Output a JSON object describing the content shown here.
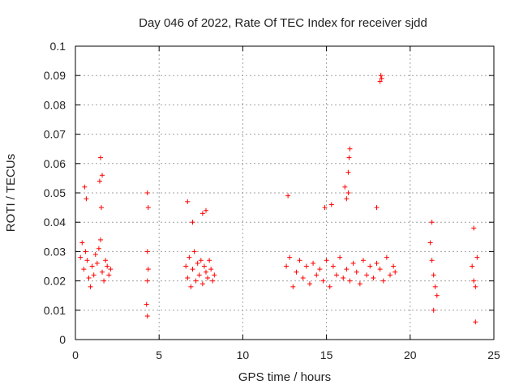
{
  "chart_data": {
    "type": "scatter",
    "title": "Day 046 of 2022, Rate Of TEC Index for receiver sjdd",
    "xlabel": "GPS time / hours",
    "ylabel": "ROTI / TECUs",
    "xlim": [
      0,
      25
    ],
    "ylim": [
      0,
      0.1
    ],
    "x_ticks": [
      "0",
      "5",
      "10",
      "15",
      "20",
      "25"
    ],
    "y_ticks": [
      "0",
      "0.01",
      "0.02",
      "0.03",
      "0.04",
      "0.05",
      "0.06",
      "0.07",
      "0.08",
      "0.09",
      "0.1"
    ],
    "grid": true,
    "marker": "+",
    "color": "#ff0000",
    "series": [
      {
        "name": "ROTI",
        "x": [
          0.3,
          0.4,
          0.5,
          0.6,
          0.7,
          0.8,
          0.9,
          1.0,
          1.1,
          1.2,
          1.3,
          1.4,
          1.5,
          1.6,
          1.7,
          1.8,
          1.9,
          2.0,
          2.1,
          0.55,
          0.65,
          1.5,
          1.45,
          1.55,
          1.6,
          4.3,
          4.35,
          4.3,
          4.25,
          4.3,
          4.35,
          4.3,
          6.6,
          6.7,
          6.8,
          6.9,
          7.0,
          7.1,
          7.2,
          7.3,
          7.4,
          7.5,
          7.6,
          7.7,
          7.8,
          7.9,
          8.0,
          8.1,
          8.2,
          8.3,
          6.7,
          7.0,
          7.6,
          7.8,
          12.6,
          12.8,
          13.0,
          13.2,
          13.4,
          13.6,
          13.8,
          14.0,
          14.2,
          14.4,
          14.6,
          14.8,
          15.0,
          15.2,
          15.4,
          15.6,
          15.8,
          16.0,
          16.2,
          16.4,
          16.6,
          16.8,
          17.0,
          17.2,
          17.4,
          17.6,
          17.8,
          18.0,
          18.2,
          18.4,
          18.6,
          18.8,
          19.0,
          19.1,
          12.7,
          14.9,
          15.3,
          16.1,
          16.3,
          16.35,
          16.4,
          16.2,
          16.3,
          18.2,
          18.25,
          18.3,
          18.0,
          21.2,
          21.3,
          21.4,
          21.5,
          21.6,
          21.3,
          21.4,
          23.7,
          23.8,
          23.9,
          24.0,
          23.8,
          23.9
        ],
        "y": [
          0.028,
          0.033,
          0.024,
          0.03,
          0.027,
          0.021,
          0.018,
          0.025,
          0.022,
          0.029,
          0.026,
          0.031,
          0.034,
          0.023,
          0.02,
          0.027,
          0.025,
          0.022,
          0.024,
          0.052,
          0.048,
          0.062,
          0.054,
          0.045,
          0.056,
          0.03,
          0.024,
          0.02,
          0.012,
          0.008,
          0.045,
          0.05,
          0.025,
          0.021,
          0.028,
          0.018,
          0.024,
          0.03,
          0.02,
          0.026,
          0.022,
          0.027,
          0.019,
          0.025,
          0.023,
          0.021,
          0.027,
          0.024,
          0.02,
          0.022,
          0.047,
          0.04,
          0.043,
          0.044,
          0.025,
          0.028,
          0.018,
          0.023,
          0.027,
          0.021,
          0.025,
          0.019,
          0.026,
          0.022,
          0.024,
          0.02,
          0.027,
          0.018,
          0.025,
          0.022,
          0.028,
          0.021,
          0.024,
          0.02,
          0.026,
          0.023,
          0.019,
          0.027,
          0.022,
          0.025,
          0.021,
          0.026,
          0.024,
          0.02,
          0.028,
          0.022,
          0.025,
          0.023,
          0.049,
          0.045,
          0.046,
          0.052,
          0.057,
          0.062,
          0.065,
          0.048,
          0.05,
          0.088,
          0.09,
          0.089,
          0.045,
          0.033,
          0.027,
          0.022,
          0.018,
          0.015,
          0.04,
          0.01,
          0.025,
          0.02,
          0.018,
          0.028,
          0.038,
          0.006
        ]
      }
    ]
  }
}
